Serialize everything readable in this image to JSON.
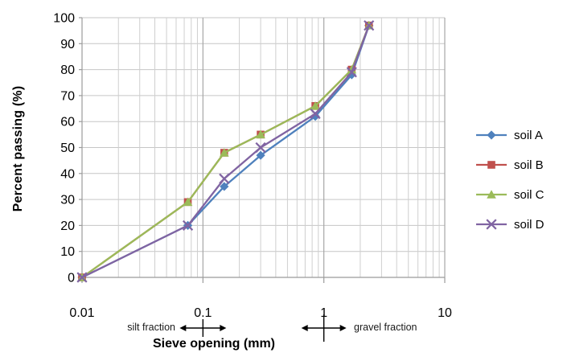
{
  "chart_data": {
    "type": "line",
    "xlabel": "Sieve opening (mm)",
    "ylabel": "Percent passing (%)",
    "x_scale": "log",
    "xlim": [
      0.01,
      10
    ],
    "ylim": [
      0,
      100
    ],
    "x_ticks": [
      "0.01",
      "0.1",
      "1",
      "10"
    ],
    "y_ticks": [
      0,
      10,
      20,
      30,
      40,
      50,
      60,
      70,
      80,
      90,
      100
    ],
    "grid": true,
    "minor_vertical_gridlines": true,
    "legend_position": "right",
    "x": [
      0.01,
      0.075,
      0.15,
      0.3,
      0.85,
      1.7,
      2.36
    ],
    "series": [
      {
        "name": "soil A",
        "marker": "diamond",
        "color": "#4F81BD",
        "values": [
          0,
          20,
          35,
          47,
          62,
          78,
          97
        ]
      },
      {
        "name": "soil B",
        "marker": "square",
        "color": "#C0504D",
        "values": [
          0,
          29,
          48,
          55,
          66,
          80,
          97
        ]
      },
      {
        "name": "soil C",
        "marker": "triangle",
        "color": "#9BBB59",
        "values": [
          0,
          29,
          48,
          55,
          66,
          80,
          97
        ]
      },
      {
        "name": "soil D",
        "marker": "x",
        "color": "#8064A2",
        "values": [
          0,
          20,
          38,
          50,
          63,
          79,
          97
        ]
      }
    ],
    "annotations": [
      {
        "text": "silt fraction",
        "arrow_at_x": 0.1,
        "label_side": "left"
      },
      {
        "text": "gravel fraction",
        "arrow_at_x": 1,
        "label_side": "right"
      }
    ]
  },
  "colors": {
    "axis": "#9B9B9B",
    "major_grid": "#A6A6A6",
    "minor_grid": "#CFCFCF",
    "h_grid": "#C6C6C6",
    "annotation": "#000000",
    "text": "#000000"
  }
}
